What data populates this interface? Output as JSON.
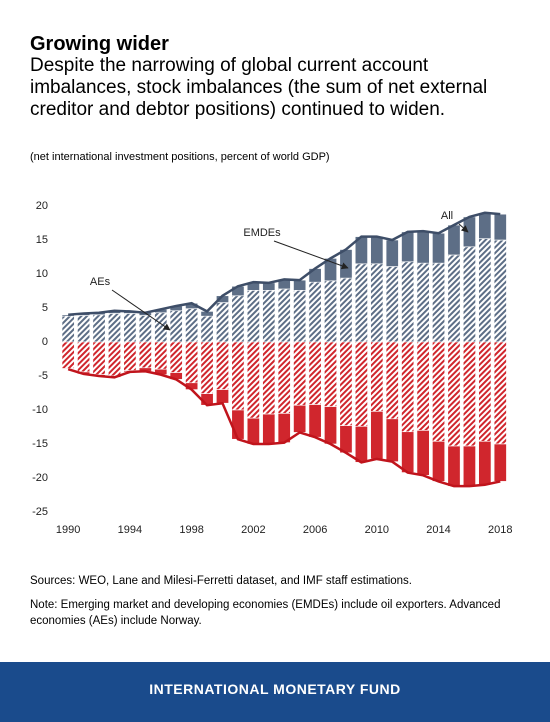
{
  "chart_data": {
    "type": "bar",
    "title": "Growing wider",
    "subtitle": "Despite the narrowing of global current account imbalances, stock imbalances (the sum of net external creditor and debtor positions) continued to widen.",
    "units_note": "(net international investment positions, percent of world GDP)",
    "annotations": [
      "AEs",
      "EMDEs",
      "All"
    ],
    "x": [
      1990,
      1991,
      1992,
      1993,
      1994,
      1995,
      1996,
      1997,
      1998,
      1999,
      2000,
      2001,
      2002,
      2003,
      2004,
      2005,
      2006,
      2007,
      2008,
      2009,
      2010,
      2011,
      2012,
      2013,
      2014,
      2015,
      2016,
      2017,
      2018
    ],
    "series": [
      {
        "name": "AEs",
        "color": "#5d6e86",
        "values": [
          3.8,
          3.9,
          4.0,
          4.2,
          4.2,
          3.9,
          4.3,
          4.6,
          4.9,
          3.8,
          5.8,
          6.8,
          7.6,
          7.6,
          7.8,
          7.6,
          8.8,
          9.0,
          9.4,
          11.5,
          11.5,
          11.1,
          11.8,
          11.6,
          11.6,
          12.8,
          14.0,
          15.2,
          15.0
        ],
        "negative_values": [
          -3.9,
          -4.4,
          -4.8,
          -5.0,
          -4.2,
          -3.8,
          -4.0,
          -4.5,
          -6.0,
          -7.6,
          -7.0,
          -10.0,
          -11.2,
          -10.6,
          -10.5,
          -9.3,
          -9.2,
          -9.5,
          -12.3,
          -12.4,
          -10.2,
          -11.3,
          -13.2,
          -13.0,
          -14.6,
          -15.3,
          -15.3,
          -14.6,
          -15.0
        ]
      },
      {
        "name": "EMDEs",
        "color": "#5d6e86",
        "values": [
          0.2,
          0.3,
          0.3,
          0.4,
          0.3,
          0.4,
          0.5,
          0.7,
          0.8,
          0.7,
          1.0,
          1.4,
          1.2,
          1.1,
          1.4,
          1.5,
          2.0,
          3.3,
          4.2,
          4.0,
          4.0,
          3.9,
          4.4,
          4.7,
          4.4,
          4.4,
          4.4,
          3.8,
          3.8
        ],
        "negative_values": [
          -0.1,
          -0.3,
          -0.2,
          -0.2,
          -0.2,
          -0.5,
          -0.8,
          -1.0,
          -1.0,
          -1.7,
          -2.0,
          -4.3,
          -3.8,
          -4.4,
          -4.3,
          -4.0,
          -4.8,
          -5.5,
          -4.0,
          -5.3,
          -7.0,
          -6.3,
          -6.0,
          -6.6,
          -5.9,
          -5.9,
          -5.9,
          -6.4,
          -5.5
        ]
      }
    ],
    "positive_color": "#5d6e86",
    "negative_color": "#d0262d",
    "xlim": [
      1989.6,
      2018.5
    ],
    "xticks": [
      1990,
      1994,
      1998,
      2002,
      2006,
      2010,
      2014,
      2018
    ],
    "ylim": [
      -25,
      20
    ],
    "yticks": [
      -25,
      -20,
      -15,
      -10,
      -5,
      0,
      5,
      10,
      15,
      20
    ],
    "grid": false,
    "sources": "Sources: WEO, Lane and Milesi-Ferretti dataset, and IMF staff estimations.",
    "note": "Note: Emerging market and developing economies (EMDEs) include oil exporters. Advanced economies (AEs) include Norway.",
    "footer": "INTERNATIONAL MONETARY FUND"
  }
}
